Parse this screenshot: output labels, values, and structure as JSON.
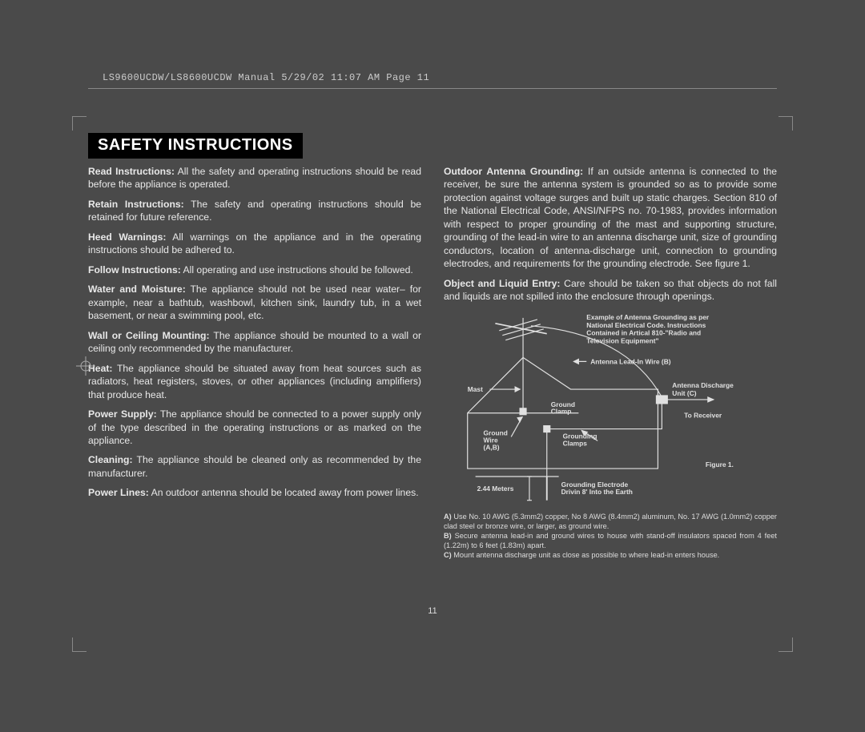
{
  "header": "LS9600UCDW/LS8600UCDW Manual  5/29/02  11:07 AM  Page 11",
  "title": "SAFETY INSTRUCTIONS",
  "page_number": "11",
  "left_paras": [
    {
      "b": "Read Instructions:",
      "t": " All the safety and operating instructions should be read before the appliance is operated."
    },
    {
      "b": "Retain Instructions:",
      "t": " The safety and operating instructions should be retained for future reference."
    },
    {
      "b": "Heed Warnings:",
      "t": " All warnings on the appliance and in the operating instructions should be adhered to."
    },
    {
      "b": "Follow Instructions:",
      "t": " All operating and use instructions should be followed."
    },
    {
      "b": "Water and Moisture:",
      "t": " The appliance should not be used near water– for example, near a bathtub, washbowl, kitchen sink, laundry tub, in a wet basement, or near a swimming pool, etc."
    },
    {
      "b": "Wall or Ceiling Mounting:",
      "t": " The appliance should be mounted to a wall or ceiling only recommended by the manufacturer."
    },
    {
      "b": "Heat:",
      "t": " The appliance should be situated away from heat sources such as radiators, heat registers, stoves, or other appliances (including amplifiers) that produce heat."
    },
    {
      "b": "Power Supply:",
      "t": " The appliance should be connected to a power supply only of the type described in the operating instructions or as marked on the appliance."
    },
    {
      "b": "Cleaning:",
      "t": " The appliance should be cleaned only as recommended by the manufacturer."
    },
    {
      "b": "Power Lines:",
      "t": " An outdoor antenna should be located away from power lines."
    }
  ],
  "right_paras": [
    {
      "b": "Outdoor Antenna Grounding:",
      "t": " If an outside antenna is connected to the receiver, be sure the antenna system is grounded so as to provide some protection against voltage surges and built up static charges. Section 810 of the National Electrical Code, ANSI/NFPS no. 70-1983, provides information with respect to proper grounding of the mast and supporting structure, grounding of the lead-in wire to an antenna discharge unit, size of grounding conductors, location of antenna-discharge unit, connection to grounding electrodes, and requirements for  the grounding electrode. See figure 1."
    },
    {
      "b": "Object and Liquid Entry:",
      "t": " Care should be taken so that objects do not fall and liquids are not spilled into the enclosure through openings."
    }
  ],
  "diagram": {
    "caption_lines": [
      "Example of Antenna Grounding as per",
      "National Electrical Code. Instructions",
      "Contained in Artical 810-\"Radio and",
      "Television Equipment\""
    ],
    "labels": {
      "mast": "Mast",
      "lead_in": "Antenna Lead-In Wire (B)",
      "discharge": "Antenna Discharge Unit (C)",
      "ground_clamp": "Ground Clamp",
      "to_receiver": "To Receiver",
      "ground_wire": "Ground Wire (A,B)",
      "grounding_clamps": "Grounding Clamps",
      "electrodes": "Grounding Electrode Drivin 8' Into the Earth",
      "depth": "2.44 Meters",
      "figure": "Figure 1."
    },
    "colors": {
      "stroke": "#e0e0e0",
      "text": "#e0e0e0",
      "bg": "#4a4a4a"
    },
    "stroke_width": 1.2
  },
  "notes": [
    {
      "b": "A)",
      "t": " Use No. 10 AWG (5.3mm2) copper, No 8 AWG (8.4mm2) aluminum, No. 17 AWG (1.0mm2) copper clad steel or bronze wire, or larger, as ground wire."
    },
    {
      "b": "B)",
      "t": " Secure antenna lead-in and ground wires to house with stand-off insulators spaced from 4 feet (1.22m) to 6 feet (1.83m) apart."
    },
    {
      "b": "C)",
      "t": " Mount antenna discharge unit as close as possible to where lead-in enters house."
    }
  ]
}
